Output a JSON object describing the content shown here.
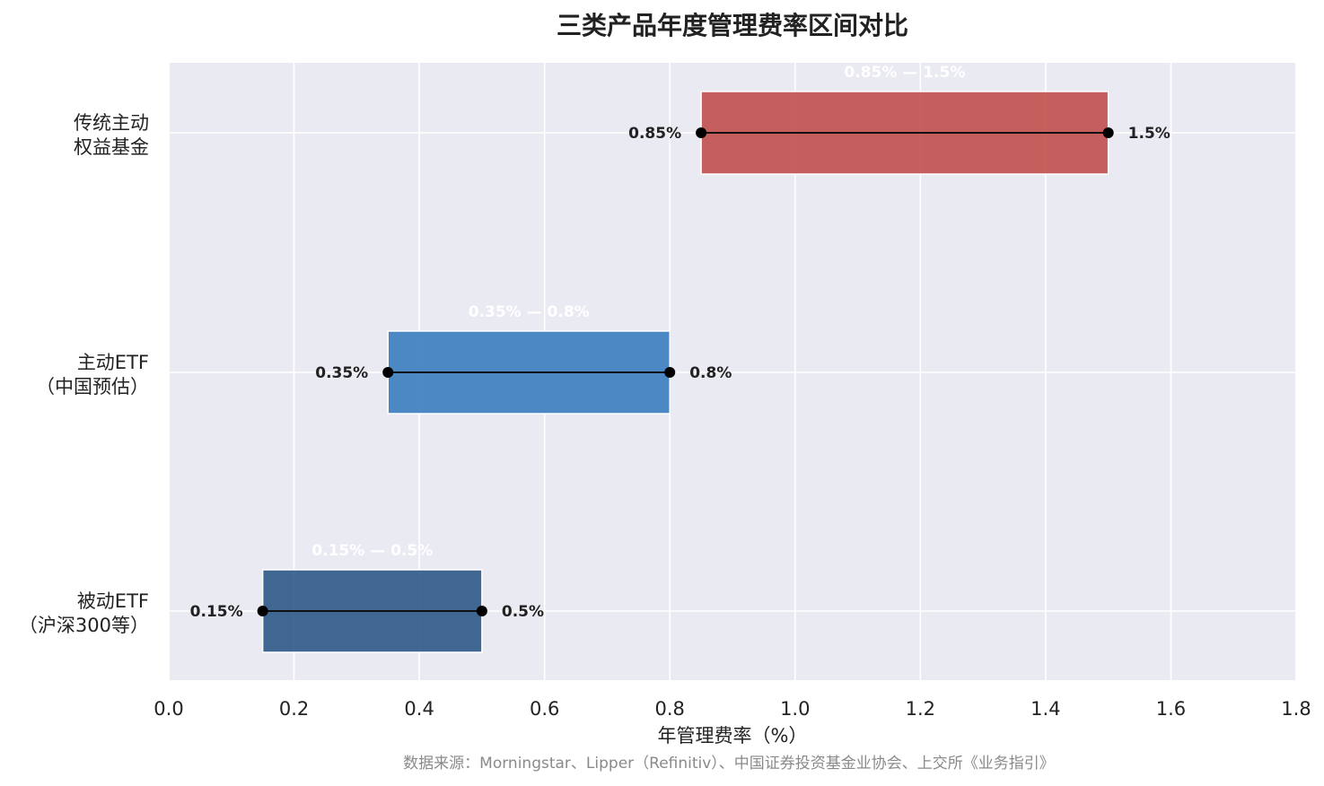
{
  "chart_data": {
    "type": "bar",
    "orientation": "horizontal-range",
    "title": "三类产品年度管理费率区间对比",
    "xlabel": "年管理费率（%）",
    "ylabel": "",
    "xlim": [
      0.0,
      1.8
    ],
    "xticks": [
      "0.0",
      "0.2",
      "0.4",
      "0.6",
      "0.8",
      "1.0",
      "1.2",
      "1.4",
      "1.6",
      "1.8"
    ],
    "grid": true,
    "categories": [
      {
        "label_line1": "传统主动",
        "label_line2": "权益基金",
        "low": 0.85,
        "high": 1.5,
        "low_label": "0.85%",
        "high_label": "1.5%",
        "range_label": "0.85% — 1.5%",
        "color": "#c0504d"
      },
      {
        "label_line1": "主动ETF",
        "label_line2": "（中国预估）",
        "low": 0.35,
        "high": 0.8,
        "low_label": "0.35%",
        "high_label": "0.8%",
        "range_label": "0.35% — 0.8%",
        "color": "#3a7dbf"
      },
      {
        "label_line1": "被动ETF",
        "label_line2": "（沪深300等）",
        "low": 0.15,
        "high": 0.5,
        "low_label": "0.15%",
        "high_label": "0.5%",
        "range_label": "0.15% — 0.5%",
        "color": "#2d5986"
      }
    ],
    "source": "数据来源：Morningstar、Lipper（Refinitiv）、中国证券投资基金业协会、上交所《业务指引》"
  },
  "colors": {
    "plot_background": "#eaeaf2",
    "grid": "#ffffff"
  }
}
